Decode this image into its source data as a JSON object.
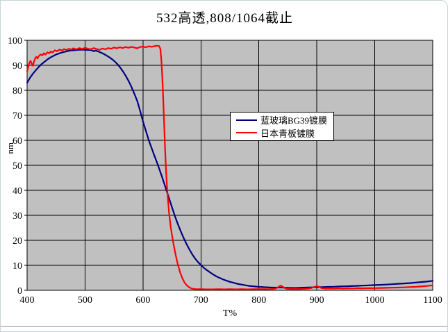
{
  "chart_data": {
    "type": "line",
    "title": "532高透,808/1064截止",
    "xlabel": "T%",
    "ylabel": "nm",
    "xlim": [
      400,
      1100
    ],
    "ylim": [
      0,
      100
    ],
    "x_ticks": [
      400,
      500,
      600,
      700,
      800,
      900,
      1000,
      1100
    ],
    "y_ticks": [
      0,
      10,
      20,
      30,
      40,
      50,
      60,
      70,
      80,
      90,
      100
    ],
    "grid": true,
    "plot_bg_color": "#c0c0c0",
    "grid_color": "#000000",
    "legend_position": "upper-middle-inside",
    "series": [
      {
        "name": "蓝玻璃BG39镀膜",
        "color": "#000080",
        "points": [
          [
            400,
            83
          ],
          [
            405,
            85
          ],
          [
            410,
            86.6
          ],
          [
            415,
            88
          ],
          [
            420,
            89.3
          ],
          [
            425,
            90.5
          ],
          [
            430,
            91.4
          ],
          [
            435,
            92.3
          ],
          [
            440,
            93.1
          ],
          [
            445,
            93.7
          ],
          [
            450,
            94.3
          ],
          [
            455,
            94.7
          ],
          [
            460,
            95.1
          ],
          [
            465,
            95.4
          ],
          [
            470,
            95.7
          ],
          [
            475,
            95.9
          ],
          [
            480,
            96
          ],
          [
            485,
            96.1
          ],
          [
            490,
            96.2
          ],
          [
            495,
            96.2
          ],
          [
            500,
            96.2
          ],
          [
            505,
            96.1
          ],
          [
            510,
            96.1
          ],
          [
            515,
            95.6
          ],
          [
            518,
            95.9
          ],
          [
            522,
            95.6
          ],
          [
            526,
            95.2
          ],
          [
            530,
            94.8
          ],
          [
            535,
            94.2
          ],
          [
            540,
            93.5
          ],
          [
            545,
            92.7
          ],
          [
            550,
            91.8
          ],
          [
            555,
            90.7
          ],
          [
            560,
            89.3
          ],
          [
            565,
            87.7
          ],
          [
            570,
            85.9
          ],
          [
            575,
            83.8
          ],
          [
            580,
            81.4
          ],
          [
            585,
            78.7
          ],
          [
            590,
            75.8
          ],
          [
            595,
            71.8
          ],
          [
            600,
            67.5
          ],
          [
            605,
            63.8
          ],
          [
            610,
            60
          ],
          [
            615,
            56.8
          ],
          [
            620,
            53.7
          ],
          [
            625,
            50.6
          ],
          [
            630,
            47.3
          ],
          [
            635,
            43.9
          ],
          [
            640,
            40.4
          ],
          [
            645,
            36.8
          ],
          [
            650,
            33.2
          ],
          [
            655,
            29.8
          ],
          [
            660,
            26.6
          ],
          [
            665,
            23.7
          ],
          [
            670,
            21
          ],
          [
            675,
            18.6
          ],
          [
            680,
            16.4
          ],
          [
            685,
            14.4
          ],
          [
            690,
            12.7
          ],
          [
            695,
            11.3
          ],
          [
            700,
            10.1
          ],
          [
            705,
            9
          ],
          [
            710,
            8.1
          ],
          [
            715,
            7.3
          ],
          [
            720,
            6.5
          ],
          [
            725,
            5.8
          ],
          [
            730,
            5.2
          ],
          [
            735,
            4.7
          ],
          [
            740,
            4.2
          ],
          [
            745,
            3.8
          ],
          [
            750,
            3.4
          ],
          [
            755,
            3.1
          ],
          [
            760,
            2.8
          ],
          [
            765,
            2.5
          ],
          [
            770,
            2.3
          ],
          [
            775,
            2.1
          ],
          [
            780,
            1.9
          ],
          [
            785,
            1.7
          ],
          [
            790,
            1.6
          ],
          [
            795,
            1.5
          ],
          [
            800,
            1.4
          ],
          [
            810,
            1.25
          ],
          [
            820,
            1.15
          ],
          [
            830,
            1.1
          ],
          [
            840,
            1.1
          ],
          [
            850,
            1
          ],
          [
            860,
            0.95
          ],
          [
            870,
            1
          ],
          [
            880,
            1.1
          ],
          [
            890,
            1.2
          ],
          [
            900,
            1.25
          ],
          [
            910,
            1.3
          ],
          [
            920,
            1.4
          ],
          [
            930,
            1.45
          ],
          [
            940,
            1.55
          ],
          [
            950,
            1.6
          ],
          [
            960,
            1.7
          ],
          [
            970,
            1.8
          ],
          [
            980,
            1.9
          ],
          [
            990,
            2
          ],
          [
            1000,
            2.1
          ],
          [
            1010,
            2.2
          ],
          [
            1020,
            2.3
          ],
          [
            1030,
            2.45
          ],
          [
            1040,
            2.6
          ],
          [
            1050,
            2.75
          ],
          [
            1060,
            2.9
          ],
          [
            1070,
            3.1
          ],
          [
            1080,
            3.3
          ],
          [
            1090,
            3.5
          ],
          [
            1100,
            3.8
          ]
        ]
      },
      {
        "name": "日本青板镀膜",
        "color": "#ff0000",
        "points": [
          [
            400,
            87.5
          ],
          [
            402,
            89.5
          ],
          [
            404,
            91
          ],
          [
            406,
            91.8
          ],
          [
            408,
            90.6
          ],
          [
            410,
            89.8
          ],
          [
            412,
            91.5
          ],
          [
            414,
            92.8
          ],
          [
            416,
            93.4
          ],
          [
            418,
            92.7
          ],
          [
            420,
            93.6
          ],
          [
            423,
            94.3
          ],
          [
            426,
            94
          ],
          [
            429,
            94.8
          ],
          [
            432,
            94.3
          ],
          [
            435,
            95.2
          ],
          [
            438,
            94.8
          ],
          [
            441,
            95.5
          ],
          [
            444,
            95.1
          ],
          [
            448,
            96
          ],
          [
            452,
            95.6
          ],
          [
            456,
            96.3
          ],
          [
            460,
            95.9
          ],
          [
            464,
            96.5
          ],
          [
            468,
            96.1
          ],
          [
            472,
            96.6
          ],
          [
            476,
            96.3
          ],
          [
            480,
            96.8
          ],
          [
            485,
            96.4
          ],
          [
            490,
            96.9
          ],
          [
            495,
            96.5
          ],
          [
            500,
            97
          ],
          [
            505,
            96.6
          ],
          [
            510,
            96.4
          ],
          [
            515,
            96.9
          ],
          [
            520,
            96.5
          ],
          [
            525,
            96.2
          ],
          [
            530,
            96.7
          ],
          [
            535,
            96.4
          ],
          [
            540,
            96.9
          ],
          [
            545,
            96.6
          ],
          [
            550,
            97.1
          ],
          [
            555,
            96.8
          ],
          [
            560,
            97.2
          ],
          [
            565,
            96.9
          ],
          [
            570,
            97.3
          ],
          [
            575,
            97
          ],
          [
            580,
            97.4
          ],
          [
            585,
            97.1
          ],
          [
            590,
            96.8
          ],
          [
            595,
            97.3
          ],
          [
            600,
            97.5
          ],
          [
            605,
            97.2
          ],
          [
            610,
            97.6
          ],
          [
            615,
            97.4
          ],
          [
            620,
            97.7
          ],
          [
            625,
            97.8
          ],
          [
            628,
            97.7
          ],
          [
            630,
            96.5
          ],
          [
            632,
            91
          ],
          [
            634,
            82
          ],
          [
            636,
            70
          ],
          [
            638,
            57
          ],
          [
            640,
            47
          ],
          [
            642,
            39.5
          ],
          [
            645,
            31
          ],
          [
            648,
            25
          ],
          [
            652,
            19.5
          ],
          [
            656,
            14.5
          ],
          [
            660,
            10.5
          ],
          [
            664,
            7.2
          ],
          [
            668,
            4.8
          ],
          [
            672,
            3
          ],
          [
            676,
            1.9
          ],
          [
            680,
            1.2
          ],
          [
            684,
            0.7
          ],
          [
            690,
            0.5
          ],
          [
            700,
            0.45
          ],
          [
            710,
            0.4
          ],
          [
            720,
            0.4
          ],
          [
            730,
            0.45
          ],
          [
            740,
            0.4
          ],
          [
            750,
            0.45
          ],
          [
            760,
            0.4
          ],
          [
            770,
            0.45
          ],
          [
            780,
            0.4
          ],
          [
            790,
            0.45
          ],
          [
            800,
            0.5
          ],
          [
            810,
            0.45
          ],
          [
            820,
            0.5
          ],
          [
            828,
            0.6
          ],
          [
            833,
            1.2
          ],
          [
            837,
            1.9
          ],
          [
            840,
            1.6
          ],
          [
            844,
            1
          ],
          [
            848,
            0.6
          ],
          [
            855,
            0.5
          ],
          [
            862,
            0.55
          ],
          [
            870,
            0.5
          ],
          [
            878,
            0.6
          ],
          [
            885,
            0.7
          ],
          [
            890,
            0.9
          ],
          [
            895,
            1.3
          ],
          [
            900,
            1.7
          ],
          [
            904,
            1.4
          ],
          [
            908,
            0.9
          ],
          [
            915,
            0.7
          ],
          [
            922,
            0.75
          ],
          [
            930,
            0.7
          ],
          [
            938,
            0.8
          ],
          [
            946,
            0.7
          ],
          [
            954,
            0.8
          ],
          [
            962,
            0.75
          ],
          [
            970,
            0.85
          ],
          [
            978,
            0.8
          ],
          [
            986,
            0.9
          ],
          [
            994,
            0.85
          ],
          [
            1002,
            0.9
          ],
          [
            1010,
            0.95
          ],
          [
            1020,
            1
          ],
          [
            1030,
            1.05
          ],
          [
            1040,
            1.1
          ],
          [
            1050,
            1.2
          ],
          [
            1060,
            1.3
          ],
          [
            1070,
            1.4
          ],
          [
            1080,
            1.55
          ],
          [
            1090,
            1.75
          ],
          [
            1100,
            2
          ]
        ]
      }
    ]
  }
}
